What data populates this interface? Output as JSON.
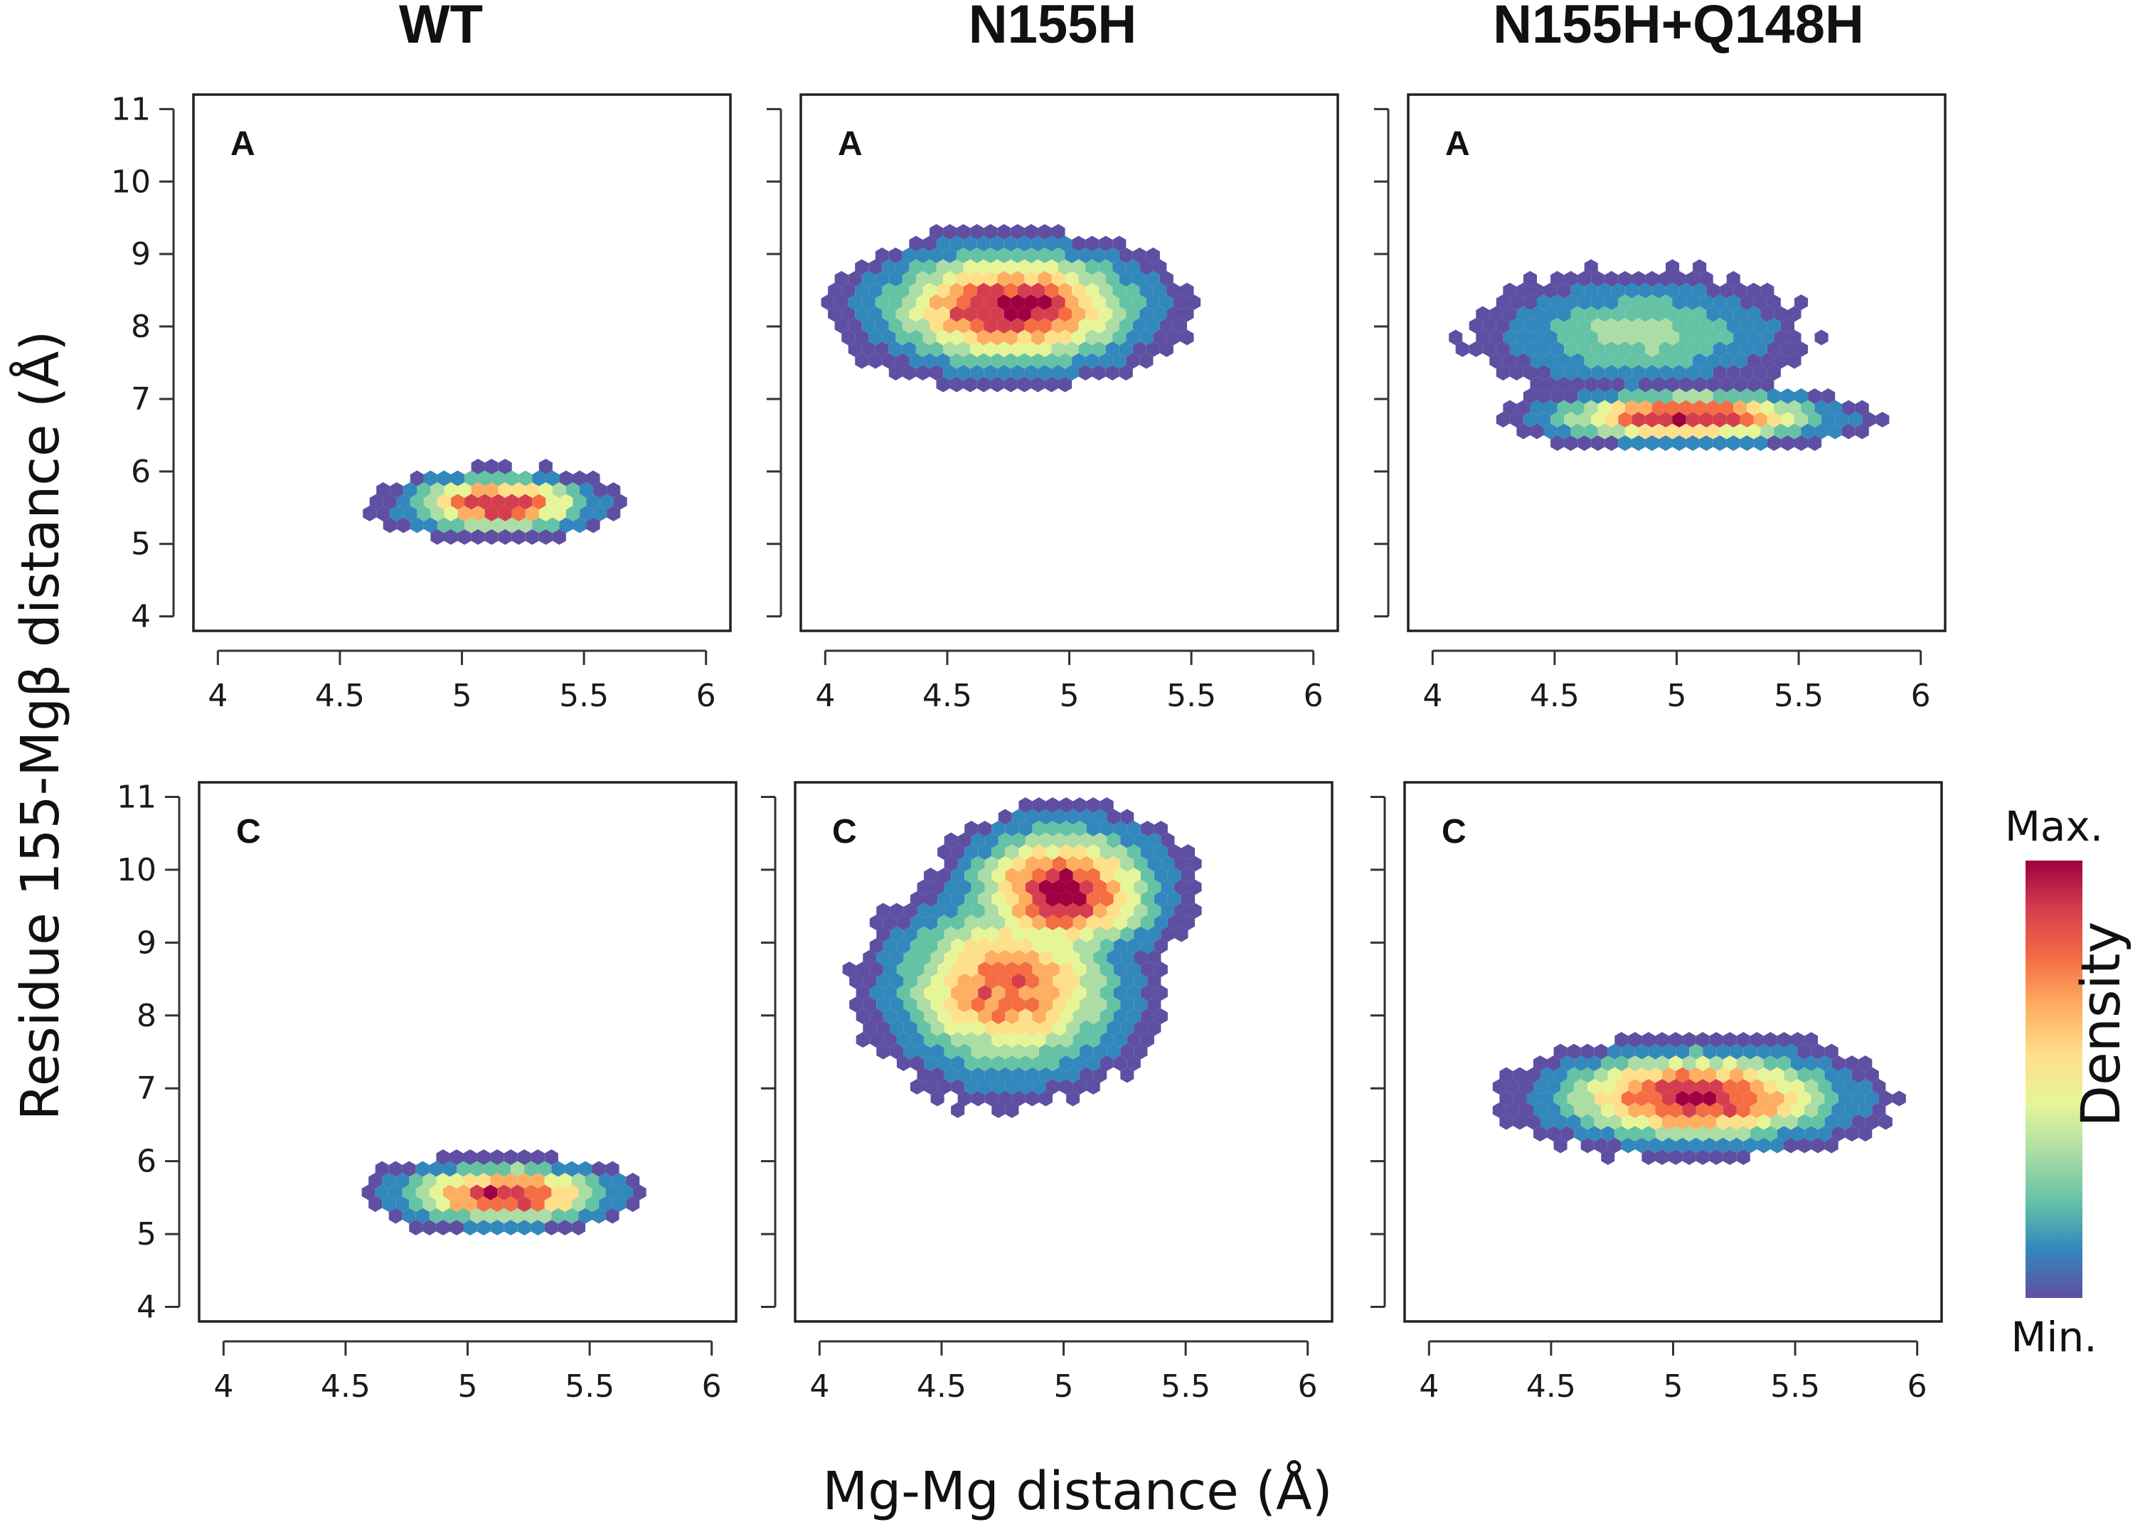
{
  "column_titles": [
    "WT",
    "N155H",
    "N155H+Q148H"
  ],
  "row_labels": [
    "A",
    "C"
  ],
  "axes": {
    "xlabel": "Mg-Mg distance (Å)",
    "ylabel": "Residue 155-Mgβ distance (Å)"
  },
  "colorbar": {
    "title": "Density",
    "max_label": "Max.",
    "min_label": "Min.",
    "colors": [
      "#5e4fa2",
      "#3288bd",
      "#66c2a5",
      "#abdda4",
      "#e6f598",
      "#fee08b",
      "#fdae61",
      "#f46d43",
      "#d53e4f",
      "#9e0142"
    ]
  },
  "chart_data": {
    "type": "hexbin-density",
    "xlim": [
      3.9,
      6.1
    ],
    "ylim": [
      3.8,
      11.2
    ],
    "x_ticks": [
      4,
      4.5,
      5,
      5.5,
      6
    ],
    "x_tick_labels": [
      "4",
      "4.5",
      "5",
      "5.5",
      "6"
    ],
    "y_ticks": [
      4,
      5,
      6,
      7,
      8,
      9,
      10,
      11
    ],
    "y_tick_labels": [
      "4",
      "5",
      "6",
      "7",
      "8",
      "9",
      "10",
      "11"
    ],
    "panels": [
      {
        "system": "WT",
        "chain": "A",
        "clusters": [
          {
            "cx": 5.15,
            "cy": 5.55,
            "sx": 0.33,
            "sy": 0.33,
            "w": 1.0
          }
        ]
      },
      {
        "system": "N155H",
        "chain": "A",
        "clusters": [
          {
            "cx": 4.76,
            "cy": 8.25,
            "sx": 0.48,
            "sy": 0.72,
            "w": 1.0
          }
        ]
      },
      {
        "system": "N155H+Q148H",
        "chain": "A",
        "clusters": [
          {
            "cx": 5.05,
            "cy": 6.75,
            "sx": 0.5,
            "sy": 0.3,
            "w": 1.0
          },
          {
            "cx": 4.85,
            "cy": 7.9,
            "sx": 0.55,
            "sy": 0.7,
            "w": 0.42
          }
        ]
      },
      {
        "system": "WT",
        "chain": "C",
        "clusters": [
          {
            "cx": 5.15,
            "cy": 5.55,
            "sx": 0.38,
            "sy": 0.35,
            "w": 1.0
          }
        ]
      },
      {
        "system": "N155H",
        "chain": "C",
        "clusters": [
          {
            "cx": 4.78,
            "cy": 8.4,
            "sx": 0.42,
            "sy": 1.1,
            "w": 0.85
          },
          {
            "cx": 5.0,
            "cy": 9.7,
            "sx": 0.35,
            "sy": 0.8,
            "w": 1.0
          }
        ]
      },
      {
        "system": "N155H+Q148H",
        "chain": "C",
        "clusters": [
          {
            "cx": 5.1,
            "cy": 6.88,
            "sx": 0.52,
            "sy": 0.55,
            "w": 1.0
          }
        ]
      }
    ]
  }
}
